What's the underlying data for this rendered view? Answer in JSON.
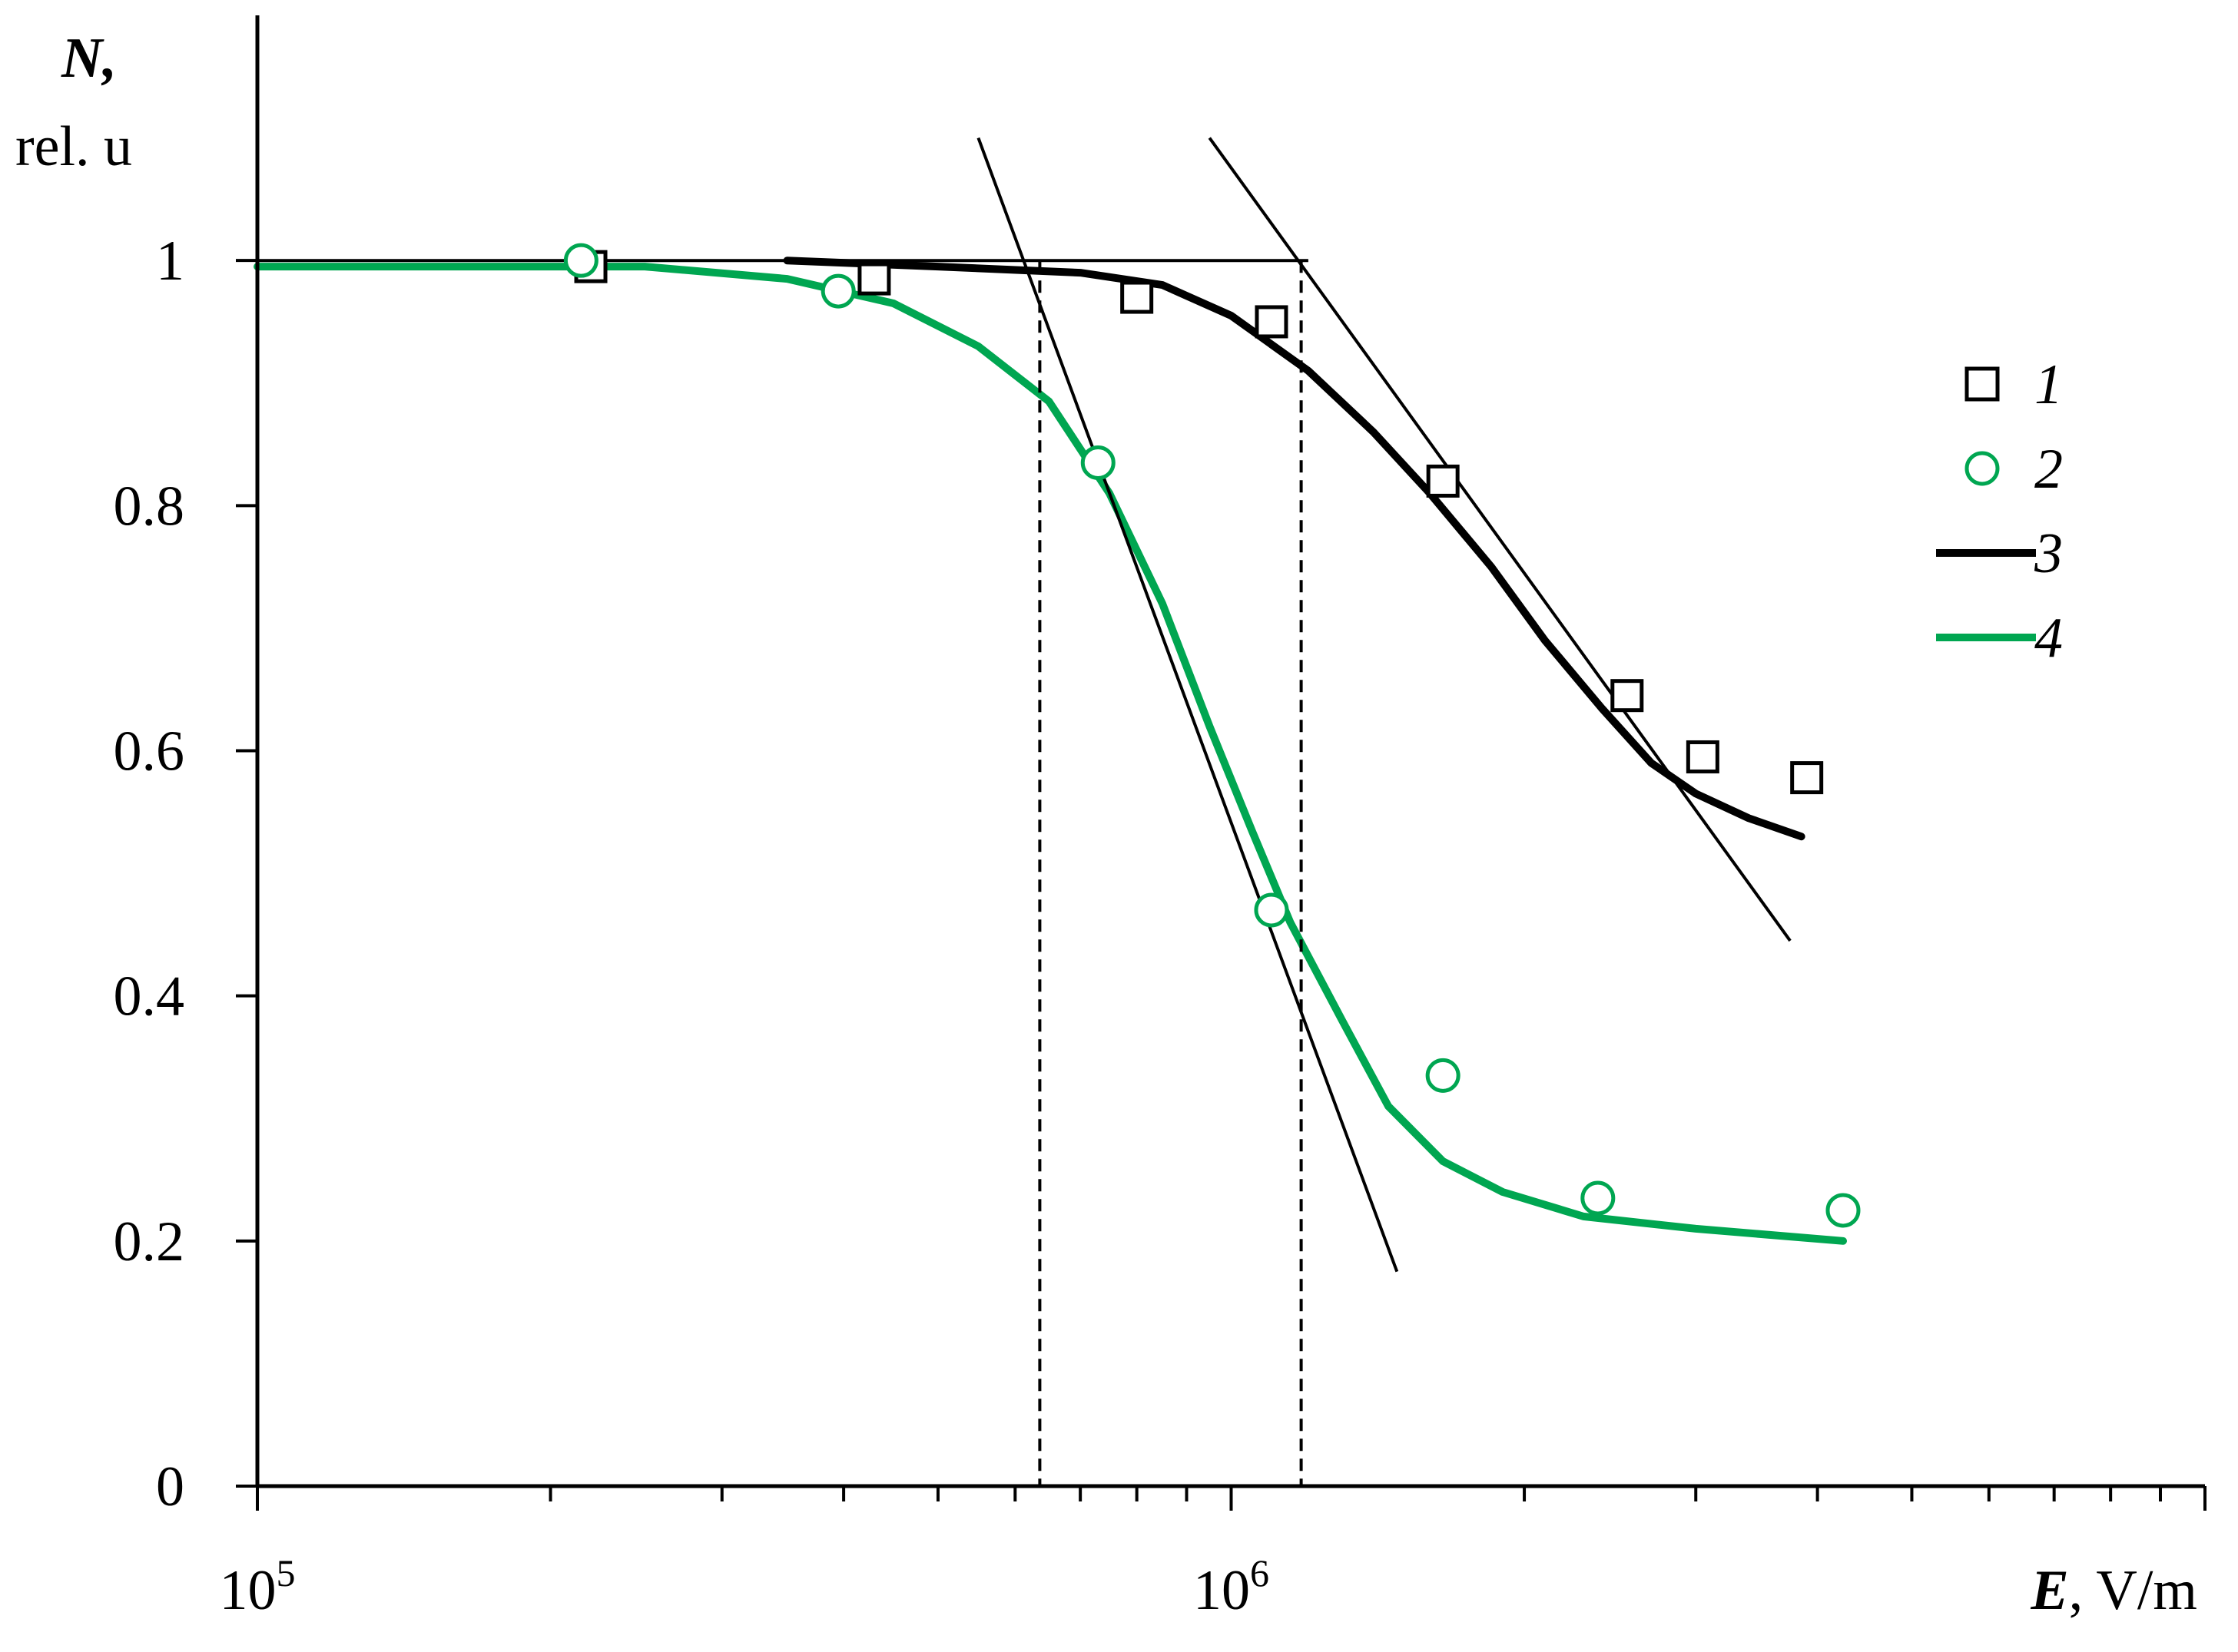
{
  "chart_data": {
    "type": "scatter",
    "x_scale": "log",
    "xlim": [
      100000,
      10000000
    ],
    "ylim": [
      0,
      1.2
    ],
    "xlabel_symbol": "E",
    "xlabel_unit": ", V/m",
    "ylabel_symbol": "N,",
    "ylabel_unit": "rel. u",
    "x_ticks": [
      {
        "value": 100000,
        "mantissa": "10",
        "exponent": "5"
      },
      {
        "value": 1000000,
        "mantissa": "10",
        "exponent": "6"
      }
    ],
    "y_ticks": [
      {
        "value": 0,
        "label": "0"
      },
      {
        "value": 0.2,
        "label": "0.2"
      },
      {
        "value": 0.4,
        "label": "0.4"
      },
      {
        "value": 0.6,
        "label": "0.6"
      },
      {
        "value": 0.8,
        "label": "0.8"
      },
      {
        "value": 1.0,
        "label": "1"
      }
    ],
    "grid": false,
    "legend_position": "right",
    "series": [
      {
        "name": "1",
        "kind": "markers",
        "marker": "square",
        "color": "#000000",
        "points": [
          [
            220000,
            0.995
          ],
          [
            430000,
            0.985
          ],
          [
            800000,
            0.97
          ],
          [
            1100000,
            0.95
          ],
          [
            1650000,
            0.82
          ],
          [
            2550000,
            0.645
          ],
          [
            3050000,
            0.595
          ],
          [
            3900000,
            0.578
          ]
        ]
      },
      {
        "name": "2",
        "kind": "markers",
        "marker": "circle",
        "color": "#00a651",
        "points": [
          [
            215000,
            1.0
          ],
          [
            395000,
            0.975
          ],
          [
            730000,
            0.835
          ],
          [
            1100000,
            0.47
          ],
          [
            1650000,
            0.335
          ],
          [
            2380000,
            0.235
          ],
          [
            4250000,
            0.225
          ]
        ]
      },
      {
        "name": "3",
        "kind": "line",
        "color": "#000000",
        "points": [
          [
            350000,
            1.0
          ],
          [
            500000,
            0.995
          ],
          [
            700000,
            0.99
          ],
          [
            850000,
            0.98
          ],
          [
            1000000,
            0.955
          ],
          [
            1200000,
            0.91
          ],
          [
            1400000,
            0.86
          ],
          [
            1600000,
            0.81
          ],
          [
            1850000,
            0.75
          ],
          [
            2100000,
            0.69
          ],
          [
            2400000,
            0.635
          ],
          [
            2700000,
            0.59
          ],
          [
            3000000,
            0.565
          ],
          [
            3400000,
            0.545
          ],
          [
            3850000,
            0.53
          ]
        ]
      },
      {
        "name": "4",
        "kind": "line",
        "color": "#00a651",
        "points": [
          [
            100000,
            0.995
          ],
          [
            250000,
            0.995
          ],
          [
            350000,
            0.985
          ],
          [
            450000,
            0.965
          ],
          [
            550000,
            0.93
          ],
          [
            650000,
            0.885
          ],
          [
            750000,
            0.81
          ],
          [
            850000,
            0.72
          ],
          [
            950000,
            0.62
          ],
          [
            1050000,
            0.535
          ],
          [
            1150000,
            0.46
          ],
          [
            1300000,
            0.38
          ],
          [
            1450000,
            0.31
          ],
          [
            1650000,
            0.265
          ],
          [
            1900000,
            0.24
          ],
          [
            2300000,
            0.22
          ],
          [
            3000000,
            0.21
          ],
          [
            4250000,
            0.2
          ]
        ]
      },
      {
        "name": "",
        "kind": "guide",
        "color": "#000000",
        "points": [
          [
            100000,
            1.0
          ],
          [
            1200000,
            1.0
          ]
        ]
      },
      {
        "name": "",
        "kind": "guide",
        "color": "#000000",
        "points": [
          [
            550000,
            1.1
          ],
          [
            1480000,
            0.175
          ]
        ]
      },
      {
        "name": "",
        "kind": "guide",
        "color": "#000000",
        "points": [
          [
            950000,
            1.1
          ],
          [
            3750000,
            0.445
          ]
        ]
      },
      {
        "name": "",
        "kind": "dashed",
        "color": "#000000",
        "points": [
          [
            636000,
            1.0
          ],
          [
            636000,
            0.0
          ]
        ]
      },
      {
        "name": "",
        "kind": "dashed",
        "color": "#000000",
        "points": [
          [
            1180000,
            1.0
          ],
          [
            1180000,
            0.0
          ]
        ]
      }
    ]
  }
}
